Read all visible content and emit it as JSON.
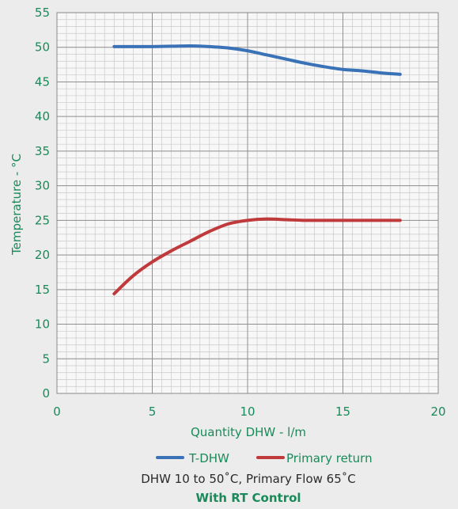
{
  "chart_data": {
    "type": "line",
    "xlabel": "Quantity DHW - l/m",
    "ylabel": "Temperature - °C",
    "xlim": [
      0,
      20
    ],
    "ylim": [
      0,
      55
    ],
    "x_major_ticks": [
      0,
      5,
      10,
      15,
      20
    ],
    "y_major_ticks": [
      0,
      5,
      10,
      15,
      20,
      25,
      30,
      35,
      40,
      45,
      50,
      55
    ],
    "x_tick_labels": [
      "0",
      "5",
      "10",
      "15",
      "20"
    ],
    "y_tick_labels": [
      "0",
      "5",
      "10",
      "15",
      "20",
      "25",
      "30",
      "35",
      "40",
      "45",
      "50",
      "55"
    ],
    "grid": true,
    "legend_position": "bottom",
    "series": [
      {
        "name": "T-DHW",
        "color": "#3a72b8",
        "points": [
          [
            3,
            50.1
          ],
          [
            4,
            50.1
          ],
          [
            5,
            50.1
          ],
          [
            6,
            50.15
          ],
          [
            7,
            50.2
          ],
          [
            8,
            50.1
          ],
          [
            9,
            49.9
          ],
          [
            10,
            49.5
          ],
          [
            11,
            48.9
          ],
          [
            12,
            48.3
          ],
          [
            13,
            47.7
          ],
          [
            14,
            47.2
          ],
          [
            15,
            46.8
          ],
          [
            16,
            46.6
          ],
          [
            17,
            46.3
          ],
          [
            18,
            46.1
          ]
        ]
      },
      {
        "name": "Primary return",
        "color": "#c0393b",
        "points": [
          [
            3,
            14.4
          ],
          [
            4,
            17.0
          ],
          [
            5,
            19.0
          ],
          [
            6,
            20.6
          ],
          [
            7,
            22.0
          ],
          [
            8,
            23.4
          ],
          [
            9,
            24.5
          ],
          [
            10,
            25.0
          ],
          [
            11,
            25.2
          ],
          [
            12,
            25.1
          ],
          [
            13,
            25.0
          ],
          [
            14,
            25.0
          ],
          [
            15,
            25.0
          ],
          [
            16,
            25.0
          ],
          [
            17,
            25.0
          ],
          [
            18,
            25.0
          ]
        ]
      }
    ],
    "caption": "DHW 10 to 50˚C, Primary Flow 65˚C",
    "subcaption": "With RT Control"
  }
}
